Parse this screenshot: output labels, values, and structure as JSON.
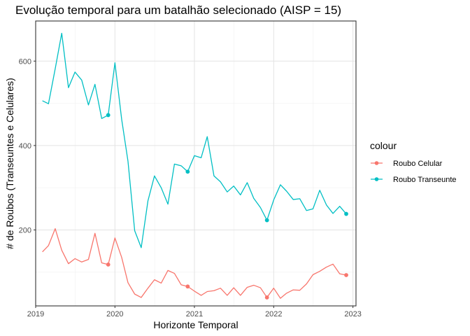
{
  "chart_data": {
    "type": "line",
    "title": "Evolução temporal para um batalhão selecionado (AISP = 15)",
    "xlabel": "Horizonte Temporal",
    "ylabel": "# de Roubos (Transeuntes e Celulares)",
    "x_ticks": [
      "2019",
      "2020",
      "2021",
      "2022",
      "2023"
    ],
    "y_ticks": [
      "200",
      "400",
      "600"
    ],
    "xlim": [
      "2019-01-01",
      "2023-01-15"
    ],
    "ylim": [
      20,
      695
    ],
    "grid": true,
    "legend": {
      "title": "colour",
      "position": "right",
      "entries": [
        "Roubo Celular",
        "Roubo Transeunte"
      ]
    },
    "x": [
      "2019-02",
      "2019-03",
      "2019-04",
      "2019-05",
      "2019-06",
      "2019-07",
      "2019-08",
      "2019-09",
      "2019-10",
      "2019-11",
      "2019-12",
      "2020-01",
      "2020-02",
      "2020-03",
      "2020-04",
      "2020-05",
      "2020-06",
      "2020-07",
      "2020-08",
      "2020-09",
      "2020-10",
      "2020-11",
      "2020-12",
      "2021-01",
      "2021-02",
      "2021-03",
      "2021-04",
      "2021-05",
      "2021-06",
      "2021-07",
      "2021-08",
      "2021-09",
      "2021-10",
      "2021-11",
      "2021-12",
      "2022-01",
      "2022-02",
      "2022-03",
      "2022-04",
      "2022-05",
      "2022-06",
      "2022-07",
      "2022-08",
      "2022-09",
      "2022-10",
      "2022-11",
      "2022-12"
    ],
    "series": [
      {
        "name": "Roubo Celular",
        "color": "#F8766D",
        "values": [
          148,
          163,
          203,
          152,
          120,
          132,
          124,
          130,
          192,
          122,
          118,
          181,
          135,
          75,
          48,
          40,
          62,
          82,
          74,
          104,
          97,
          70,
          66,
          55,
          45,
          54,
          56,
          62,
          45,
          63,
          45,
          64,
          69,
          63,
          40,
          62,
          38,
          50,
          58,
          57,
          72,
          94,
          102,
          112,
          119,
          96,
          93
        ],
        "markers": [
          {
            "x": "2019-12",
            "y": 118
          },
          {
            "x": "2020-12",
            "y": 66
          },
          {
            "x": "2021-12",
            "y": 40
          },
          {
            "x": "2022-12",
            "y": 93
          }
        ]
      },
      {
        "name": "Roubo Transeunte",
        "color": "#00BFC4",
        "values": [
          506,
          499,
          582,
          666,
          537,
          574,
          555,
          496,
          545,
          464,
          472,
          596,
          462,
          363,
          198,
          158,
          269,
          328,
          300,
          261,
          356,
          352,
          338,
          376,
          371,
          421,
          328,
          314,
          290,
          304,
          283,
          312,
          275,
          253,
          223,
          271,
          307,
          292,
          272,
          274,
          246,
          250,
          294,
          259,
          239,
          256,
          238
        ],
        "markers": [
          {
            "x": "2019-12",
            "y": 472
          },
          {
            "x": "2020-12",
            "y": 338
          },
          {
            "x": "2021-12",
            "y": 223
          },
          {
            "x": "2022-12",
            "y": 238
          }
        ]
      }
    ]
  }
}
